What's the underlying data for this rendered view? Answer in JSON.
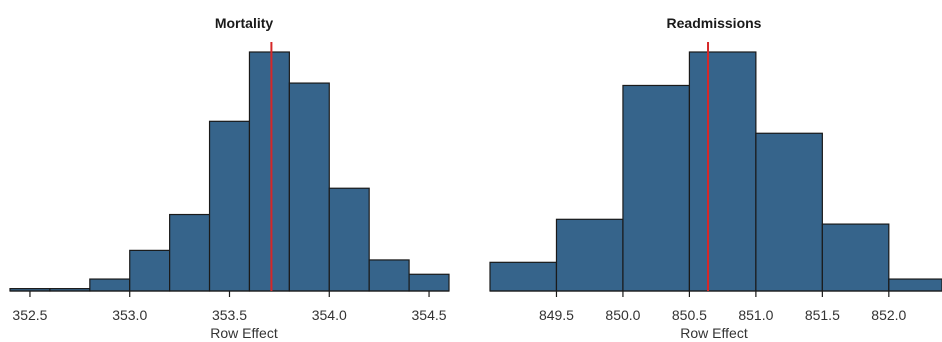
{
  "chart_data": [
    {
      "type": "histogram",
      "title": "Mortality",
      "xlabel": "Row Effect",
      "ylabel": "",
      "xlim": [
        352.4,
        354.6
      ],
      "ylim": [
        0,
        1
      ],
      "bins": [
        {
          "x0": 352.4,
          "x1": 352.6,
          "value": 0.01
        },
        {
          "x0": 352.6,
          "x1": 352.8,
          "value": 0.01
        },
        {
          "x0": 352.8,
          "x1": 353.0,
          "value": 0.05
        },
        {
          "x0": 353.0,
          "x1": 353.2,
          "value": 0.17
        },
        {
          "x0": 353.2,
          "x1": 353.4,
          "value": 0.32
        },
        {
          "x0": 353.4,
          "x1": 353.6,
          "value": 0.71
        },
        {
          "x0": 353.6,
          "x1": 353.8,
          "value": 1.0
        },
        {
          "x0": 353.8,
          "x1": 354.0,
          "value": 0.87
        },
        {
          "x0": 354.0,
          "x1": 354.2,
          "value": 0.43
        },
        {
          "x0": 354.2,
          "x1": 354.4,
          "value": 0.13
        },
        {
          "x0": 354.4,
          "x1": 354.6,
          "value": 0.07
        }
      ],
      "reference_line": 353.71,
      "ticks": [
        352.5,
        353.0,
        353.5,
        354.0,
        354.5
      ],
      "tick_labels": [
        "352.5",
        "353.0",
        "353.5",
        "354.0",
        "354.5"
      ],
      "bar_color": "#36648b",
      "edge_color": "#1a1a1a",
      "line_color": "#d62728",
      "grid": false
    },
    {
      "type": "histogram",
      "title": "Readmissions",
      "xlabel": "Row Effect",
      "ylabel": "",
      "xlim": [
        849.0,
        852.4
      ],
      "ylim": [
        0,
        1
      ],
      "bins": [
        {
          "x0": 849.0,
          "x1": 849.5,
          "value": 0.12
        },
        {
          "x0": 849.5,
          "x1": 850.0,
          "value": 0.3
        },
        {
          "x0": 850.0,
          "x1": 850.5,
          "value": 0.86
        },
        {
          "x0": 850.5,
          "x1": 851.0,
          "value": 1.0
        },
        {
          "x0": 851.0,
          "x1": 851.5,
          "value": 0.66
        },
        {
          "x0": 851.5,
          "x1": 852.0,
          "value": 0.28
        },
        {
          "x0": 852.0,
          "x1": 852.4,
          "value": 0.05
        }
      ],
      "reference_line": 850.64,
      "ticks": [
        849.5,
        850.0,
        850.5,
        851.0,
        851.5,
        852.0
      ],
      "tick_labels": [
        "849.5",
        "850.0",
        "850.5",
        "851.0",
        "851.5",
        "852.0"
      ],
      "bar_color": "#36648b",
      "edge_color": "#1a1a1a",
      "line_color": "#d62728",
      "grid": false
    }
  ]
}
